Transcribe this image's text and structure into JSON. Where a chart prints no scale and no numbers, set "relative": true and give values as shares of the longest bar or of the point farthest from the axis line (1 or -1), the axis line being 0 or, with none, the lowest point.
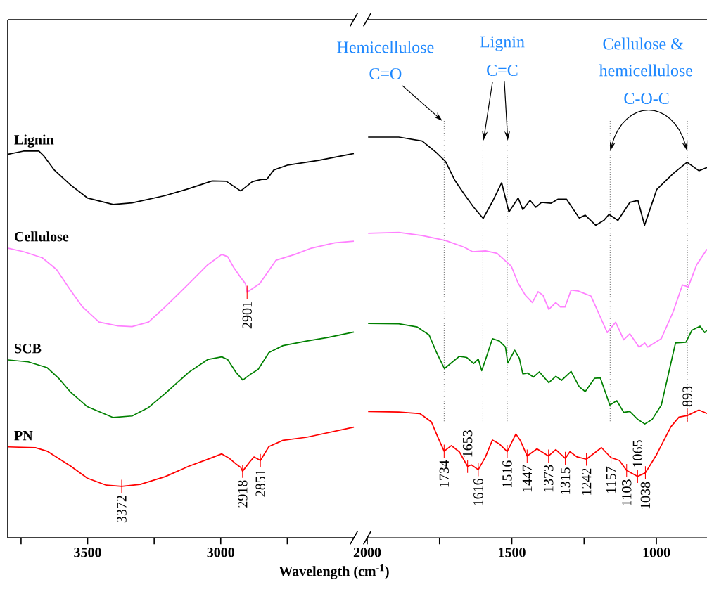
{
  "chart_data": [
    {
      "type": "line",
      "relative": true,
      "xlabel": "Wavelength (cm$^{-1}$)",
      "xlim": [
        3800,
        2500
      ],
      "xticks": [
        {
          "value": 3750,
          "label": null
        },
        3500,
        {
          "value": 3250,
          "label": null
        },
        3000,
        {
          "value": 2750,
          "label": null
        }
      ],
      "series": [
        {
          "name": "Lignin",
          "color": "#000000",
          "x": [
            3798,
            3741,
            3683,
            3665,
            3625,
            3563,
            3501,
            3404,
            3333,
            3209,
            3120,
            3032,
            2979,
            2925,
            2881,
            2846,
            2827,
            2801,
            2748,
            2632,
            2500
          ],
          "values": [
            0.992,
            1.0,
            1.0,
            0.988,
            0.951,
            0.912,
            0.879,
            0.862,
            0.866,
            0.885,
            0.903,
            0.923,
            0.922,
            0.897,
            0.921,
            0.927,
            0.927,
            0.951,
            0.964,
            0.976,
            0.994
          ]
        },
        {
          "name": "Cellulose",
          "color": "#ff80ff",
          "x": [
            3798,
            3741,
            3670,
            3617,
            3563,
            3519,
            3457,
            3386,
            3333,
            3271,
            3209,
            3120,
            3049,
            2996,
            2974,
            2952,
            2925,
            2907,
            2901,
            2854,
            2792,
            2721,
            2660,
            2571,
            2500
          ],
          "values": [
            0.749,
            0.74,
            0.724,
            0.694,
            0.639,
            0.597,
            0.558,
            0.548,
            0.546,
            0.558,
            0.597,
            0.657,
            0.706,
            0.733,
            0.727,
            0.7,
            0.673,
            0.657,
            0.635,
            0.657,
            0.718,
            0.733,
            0.749,
            0.763,
            0.767
          ]
        },
        {
          "name": "SCB",
          "color": "#008000",
          "x": [
            3798,
            3723,
            3652,
            3608,
            3563,
            3501,
            3404,
            3333,
            3271,
            3209,
            3120,
            3049,
            2996,
            2974,
            2943,
            2917,
            2890,
            2859,
            2819,
            2766,
            2677,
            2598,
            2500
          ],
          "values": [
            0.46,
            0.455,
            0.44,
            0.412,
            0.376,
            0.339,
            0.311,
            0.315,
            0.337,
            0.373,
            0.428,
            0.461,
            0.468,
            0.461,
            0.428,
            0.408,
            0.422,
            0.436,
            0.479,
            0.497,
            0.509,
            0.518,
            0.532
          ]
        },
        {
          "name": "PN",
          "color": "#ff0000",
          "x": [
            3798,
            3696,
            3652,
            3563,
            3501,
            3430,
            3372,
            3303,
            3209,
            3120,
            3049,
            2996,
            2969,
            2943,
            2925,
            2918,
            2890,
            2875,
            2851,
            2819,
            2766,
            2677,
            2500
          ],
          "values": [
            0.235,
            0.233,
            0.224,
            0.185,
            0.154,
            0.136,
            0.133,
            0.138,
            0.158,
            0.185,
            0.203,
            0.217,
            0.206,
            0.191,
            0.182,
            0.172,
            0.197,
            0.209,
            0.2,
            0.236,
            0.252,
            0.26,
            0.286
          ]
        }
      ],
      "annotations": [
        {
          "text": "2901",
          "x": 2901,
          "y": 0.635
        },
        {
          "text": "3372",
          "x": 3372,
          "y": 0.133
        },
        {
          "text": "2918",
          "x": 2918,
          "y": 0.172
        },
        {
          "text": "2851",
          "x": 2851,
          "y": 0.2
        }
      ]
    },
    {
      "type": "line",
      "relative": true,
      "xlim": [
        2000,
        825
      ],
      "xticks": [
        2000,
        {
          "value": 1750,
          "label": null
        },
        1500,
        {
          "value": 1250,
          "label": null
        },
        1000
      ],
      "series": [
        {
          "color": "#000000",
          "x": [
            1997,
            1891,
            1810,
            1762,
            1729,
            1697,
            1664,
            1632,
            1599,
            1567,
            1535,
            1510,
            1478,
            1462,
            1437,
            1417,
            1397,
            1364,
            1340,
            1311,
            1267,
            1246,
            1210,
            1182,
            1164,
            1133,
            1092,
            1064,
            1041,
            999,
            942,
            894,
            853,
            825
          ],
          "values": [
            1.0,
            1.0,
            0.99,
            0.962,
            0.939,
            0.892,
            0.857,
            0.825,
            0.797,
            0.839,
            0.886,
            0.813,
            0.848,
            0.819,
            0.842,
            0.825,
            0.837,
            0.835,
            0.845,
            0.845,
            0.798,
            0.805,
            0.78,
            0.792,
            0.807,
            0.792,
            0.837,
            0.842,
            0.78,
            0.869,
            0.909,
            0.937,
            0.916,
            0.924
          ]
        },
        {
          "color": "#ff80ff",
          "x": [
            1997,
            1891,
            1810,
            1729,
            1664,
            1636,
            1591,
            1551,
            1502,
            1478,
            1453,
            1429,
            1409,
            1392,
            1372,
            1348,
            1332,
            1316,
            1295,
            1271,
            1226,
            1202,
            1170,
            1141,
            1113,
            1092,
            1060,
            1040,
            1030,
            983,
            942,
            910,
            890,
            861,
            825
          ],
          "values": [
            0.76,
            0.762,
            0.754,
            0.742,
            0.725,
            0.714,
            0.716,
            0.71,
            0.678,
            0.635,
            0.605,
            0.587,
            0.614,
            0.605,
            0.57,
            0.587,
            0.576,
            0.576,
            0.618,
            0.616,
            0.603,
            0.564,
            0.512,
            0.538,
            0.494,
            0.509,
            0.476,
            0.486,
            0.476,
            0.497,
            0.564,
            0.631,
            0.626,
            0.681,
            0.72
          ]
        },
        {
          "color": "#008000",
          "x": [
            1997,
            1891,
            1827,
            1786,
            1762,
            1733,
            1705,
            1681,
            1656,
            1632,
            1616,
            1604,
            1587,
            1567,
            1543,
            1522,
            1514,
            1490,
            1474,
            1462,
            1445,
            1425,
            1405,
            1372,
            1348,
            1328,
            1295,
            1267,
            1246,
            1214,
            1194,
            1161,
            1137,
            1113,
            1092,
            1064,
            1040,
            1015,
            983,
            934,
            898,
            877,
            849,
            833,
            825
          ],
          "values": [
            0.535,
            0.534,
            0.526,
            0.506,
            0.465,
            0.422,
            0.439,
            0.453,
            0.45,
            0.435,
            0.446,
            0.417,
            0.453,
            0.497,
            0.491,
            0.476,
            0.436,
            0.468,
            0.448,
            0.409,
            0.411,
            0.401,
            0.414,
            0.387,
            0.403,
            0.393,
            0.415,
            0.377,
            0.365,
            0.398,
            0.399,
            0.331,
            0.342,
            0.313,
            0.315,
            0.295,
            0.284,
            0.295,
            0.331,
            0.486,
            0.488,
            0.518,
            0.528,
            0.512,
            0.518
          ]
        },
        {
          "color": "#ff0000",
          "x": [
            1997,
            1891,
            1818,
            1778,
            1754,
            1734,
            1709,
            1681,
            1653,
            1640,
            1616,
            1591,
            1567,
            1543,
            1516,
            1486,
            1470,
            1447,
            1413,
            1373,
            1348,
            1315,
            1299,
            1275,
            1242,
            1190,
            1157,
            1128,
            1103,
            1065,
            1038,
            999,
            950,
            922,
            893,
            853,
            825
          ],
          "values": [
            0.315,
            0.314,
            0.31,
            0.289,
            0.248,
            0.216,
            0.23,
            0.214,
            0.178,
            0.182,
            0.17,
            0.202,
            0.244,
            0.234,
            0.215,
            0.259,
            0.242,
            0.204,
            0.222,
            0.204,
            0.22,
            0.198,
            0.215,
            0.202,
            0.196,
            0.225,
            0.2,
            0.193,
            0.168,
            0.153,
            0.162,
            0.208,
            0.277,
            0.301,
            0.305,
            0.319,
            0.31
          ]
        }
      ],
      "ref_lines": [
        {
          "axis": "x",
          "value": 1734,
          "line_style": "dotted"
        },
        {
          "axis": "x",
          "value": 1600,
          "line_style": "dotted"
        },
        {
          "axis": "x",
          "value": 1516,
          "line_style": "dotted"
        },
        {
          "axis": "x",
          "value": 1160,
          "line_style": "dotted"
        },
        {
          "axis": "x",
          "value": 893,
          "line_style": "dotted"
        }
      ],
      "annotations": [
        "Hemicellulose",
        "C=O",
        "Lignin",
        "C=C",
        "Cellulose &",
        "hemicellulose",
        "C-O-C",
        {
          "text": "1734",
          "x": 1734,
          "y": 0.216
        },
        {
          "text": "1653",
          "x": 1653,
          "y": 0.178
        },
        {
          "text": "1616",
          "x": 1616,
          "y": 0.17
        },
        {
          "text": "1516",
          "x": 1516,
          "y": 0.215
        },
        {
          "text": "1447",
          "x": 1447,
          "y": 0.204
        },
        {
          "text": "1373",
          "x": 1373,
          "y": 0.204
        },
        {
          "text": "1315",
          "x": 1315,
          "y": 0.198
        },
        {
          "text": "1242",
          "x": 1242,
          "y": 0.196
        },
        {
          "text": "1157",
          "x": 1157,
          "y": 0.2
        },
        {
          "text": "1103",
          "x": 1103,
          "y": 0.168
        },
        {
          "text": "1065",
          "x": 1065,
          "y": 0.153
        },
        {
          "text": "1038",
          "x": 1038,
          "y": 0.162
        },
        {
          "text": "893",
          "x": 893,
          "y": 0.305
        }
      ]
    }
  ]
}
